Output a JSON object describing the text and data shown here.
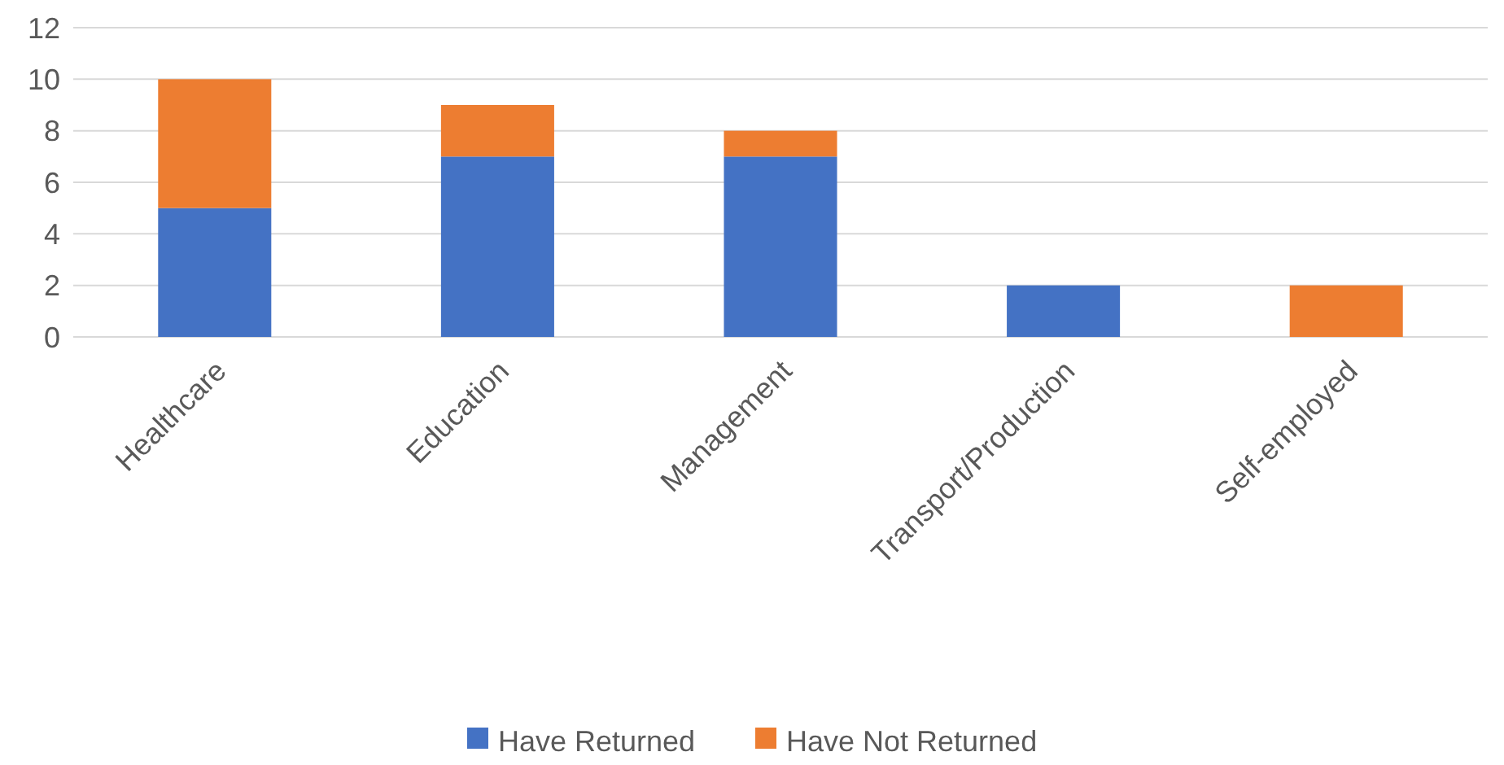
{
  "chart_data": {
    "type": "bar",
    "stacked": true,
    "categories": [
      "Healthcare",
      "Education",
      "Management",
      "Transport/Production",
      "Self-employed"
    ],
    "series": [
      {
        "name": "Have Returned",
        "color": "#4472c4",
        "values": [
          5,
          7,
          7,
          2,
          0
        ]
      },
      {
        "name": "Have Not Returned",
        "color": "#ed7d31",
        "values": [
          5,
          2,
          1,
          0,
          2
        ]
      }
    ],
    "ylim": [
      0,
      12
    ],
    "yticks": [
      0,
      2,
      4,
      6,
      8,
      10,
      12
    ],
    "grid": "y",
    "legend": "bottom"
  }
}
